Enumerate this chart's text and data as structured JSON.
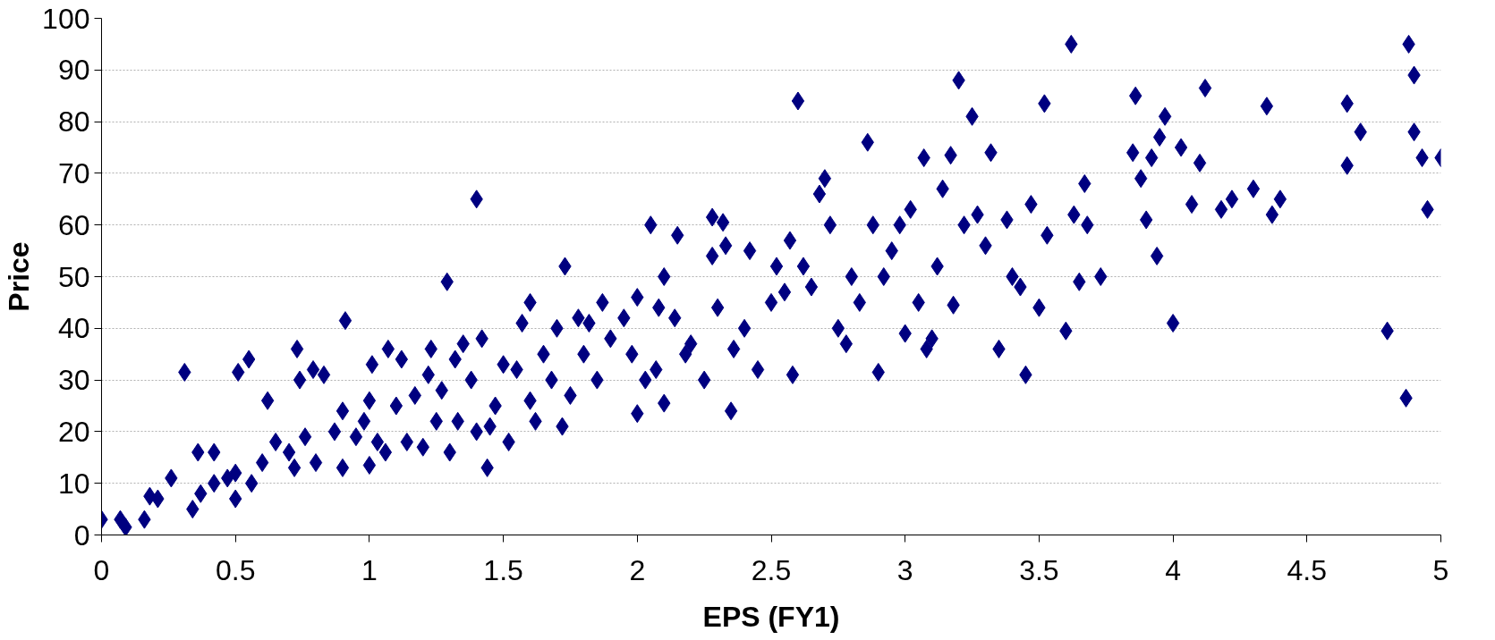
{
  "chart_data": {
    "type": "scatter",
    "xlabel": "EPS (FY1)",
    "ylabel": "Price",
    "marker": "diamond",
    "grid": "y",
    "xlim": [
      0,
      5
    ],
    "xticks": [
      0,
      0.5,
      1,
      1.5,
      2,
      2.5,
      3,
      3.5,
      4,
      4.5,
      5
    ],
    "ylim": [
      0,
      100
    ],
    "yticks": [
      0,
      10,
      20,
      30,
      40,
      50,
      60,
      70,
      80,
      90,
      100
    ],
    "series": [
      {
        "color": "#000080",
        "x": [
          0,
          0.07,
          0.09,
          0.16,
          0.18,
          0.21,
          0.26,
          0.31,
          0.34,
          0.36,
          0.37,
          0.42,
          0.42,
          0.47,
          0.5,
          0.5,
          0.51,
          0.55,
          0.56,
          0.6,
          0.62,
          0.65,
          0.7,
          0.72,
          0.73,
          0.74,
          0.76,
          0.79,
          0.8,
          0.83,
          0.87,
          0.9,
          0.9,
          0.91,
          0.95,
          0.98,
          1.0,
          1.0,
          1.01,
          1.03,
          1.06,
          1.07,
          1.1,
          1.12,
          1.14,
          1.17,
          1.2,
          1.22,
          1.23,
          1.25,
          1.27,
          1.29,
          1.3,
          1.32,
          1.33,
          1.35,
          1.38,
          1.4,
          1.4,
          1.42,
          1.44,
          1.45,
          1.47,
          1.5,
          1.52,
          1.55,
          1.57,
          1.6,
          1.6,
          1.62,
          1.65,
          1.68,
          1.7,
          1.72,
          1.73,
          1.75,
          1.78,
          1.8,
          1.82,
          1.85,
          1.87,
          1.9,
          1.95,
          1.98,
          2.0,
          2.0,
          2.03,
          2.05,
          2.07,
          2.08,
          2.1,
          2.1,
          2.14,
          2.15,
          2.18,
          2.2,
          2.25,
          2.28,
          2.28,
          2.3,
          2.32,
          2.33,
          2.35,
          2.36,
          2.4,
          2.42,
          2.45,
          2.5,
          2.52,
          2.55,
          2.57,
          2.58,
          2.6,
          2.62,
          2.65,
          2.68,
          2.7,
          2.72,
          2.75,
          2.78,
          2.8,
          2.83,
          2.86,
          2.88,
          2.9,
          2.92,
          2.95,
          2.98,
          3.0,
          3.02,
          3.05,
          3.07,
          3.08,
          3.1,
          3.12,
          3.14,
          3.17,
          3.18,
          3.2,
          3.22,
          3.25,
          3.27,
          3.3,
          3.32,
          3.35,
          3.38,
          3.4,
          3.43,
          3.45,
          3.47,
          3.5,
          3.52,
          3.53,
          3.6,
          3.62,
          3.63,
          3.65,
          3.67,
          3.68,
          3.73,
          3.85,
          3.86,
          3.88,
          3.9,
          3.92,
          3.94,
          3.95,
          3.97,
          4.0,
          4.03,
          4.07,
          4.1,
          4.12,
          4.18,
          4.22,
          4.3,
          4.35,
          4.37,
          4.4,
          4.65,
          4.65,
          4.7,
          4.8,
          4.87,
          4.88,
          4.9,
          4.9,
          4.93,
          4.95,
          5.0
        ],
        "values": [
          3,
          3,
          1.5,
          3,
          7.5,
          7,
          11,
          31.5,
          5,
          16,
          8,
          16,
          10,
          11,
          12,
          7,
          31.5,
          34,
          10,
          14,
          26,
          18,
          16,
          13,
          36,
          30,
          19,
          32,
          14,
          31,
          20,
          13,
          24,
          41.5,
          19,
          22,
          26,
          13.5,
          33,
          18,
          16,
          36,
          25,
          34,
          18,
          27,
          17,
          31,
          36,
          22,
          28,
          49,
          16,
          34,
          22,
          37,
          30,
          65,
          20,
          38,
          13,
          21,
          25,
          33,
          18,
          32,
          41,
          45,
          26,
          22,
          35,
          30,
          40,
          21,
          52,
          27,
          42,
          35,
          41,
          30,
          45,
          38,
          42,
          35,
          23.5,
          46,
          30,
          60,
          32,
          44,
          25.5,
          50,
          42,
          58,
          35,
          37,
          30,
          54,
          61.5,
          44,
          60.5,
          56,
          24,
          36,
          40,
          55,
          32,
          45,
          52,
          47,
          57,
          31,
          84,
          52,
          48,
          66,
          69,
          60,
          40,
          37,
          50,
          45,
          76,
          60,
          31.5,
          50,
          55,
          60,
          39,
          63,
          45,
          73,
          36,
          38,
          52,
          67,
          73.5,
          44.5,
          88,
          60,
          81,
          62,
          56,
          74,
          36,
          61,
          50,
          48,
          31,
          64,
          44,
          83.5,
          58,
          39.5,
          95,
          62,
          49,
          68,
          60,
          50,
          74,
          85,
          69,
          61,
          73,
          54,
          77,
          81,
          41,
          75,
          64,
          72,
          86.5,
          63,
          65,
          67,
          83,
          62,
          65,
          83.5,
          71.5,
          78,
          39.5,
          26.5,
          95,
          89,
          78,
          73,
          63,
          73
        ]
      }
    ]
  }
}
